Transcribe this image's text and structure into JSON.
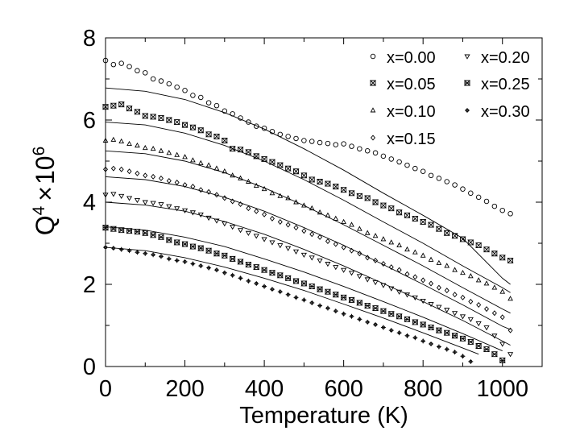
{
  "chart_data": {
    "type": "scatter",
    "title": "",
    "xlabel": "Temperature (K)",
    "ylabel": {
      "base": "Q",
      "sup1": "4",
      "times": "×",
      "mult": "10",
      "sup2": "6"
    },
    "xlim": [
      0,
      1100
    ],
    "ylim": [
      0,
      8
    ],
    "xticks": [
      0,
      200,
      400,
      600,
      800,
      1000
    ],
    "yticks": [
      0,
      2,
      4,
      6,
      8
    ],
    "grid": false,
    "legend_position": "top-right",
    "series": [
      {
        "name": "x=0.00",
        "marker": "circle",
        "x": [
          0,
          20,
          40,
          60,
          80,
          100,
          120,
          140,
          160,
          180,
          200,
          220,
          240,
          260,
          280,
          300,
          320,
          340,
          360,
          380,
          400,
          420,
          440,
          460,
          480,
          500,
          520,
          540,
          560,
          580,
          600,
          620,
          640,
          660,
          680,
          700,
          720,
          740,
          760,
          780,
          800,
          820,
          840,
          860,
          880,
          900,
          920,
          940,
          960,
          980,
          1000,
          1020
        ],
        "y": [
          7.45,
          7.35,
          7.38,
          7.3,
          7.2,
          7.15,
          7.0,
          6.95,
          6.88,
          6.8,
          6.72,
          6.6,
          6.55,
          6.42,
          6.35,
          6.22,
          6.15,
          6.05,
          5.95,
          5.85,
          5.8,
          5.72,
          5.65,
          5.6,
          5.55,
          5.5,
          5.48,
          5.45,
          5.43,
          5.4,
          5.42,
          5.36,
          5.3,
          5.25,
          5.2,
          5.12,
          5.05,
          4.98,
          4.9,
          4.82,
          4.75,
          4.65,
          4.58,
          4.5,
          4.42,
          4.32,
          4.22,
          4.12,
          4.02,
          3.9,
          3.8,
          3.72
        ]
      },
      {
        "name": "x=0.05",
        "marker": "bowtie",
        "x": [
          0,
          20,
          40,
          60,
          80,
          100,
          120,
          140,
          160,
          180,
          200,
          220,
          240,
          260,
          280,
          300,
          320,
          340,
          360,
          380,
          400,
          420,
          440,
          460,
          480,
          500,
          520,
          540,
          560,
          580,
          600,
          620,
          640,
          660,
          680,
          700,
          720,
          740,
          760,
          780,
          800,
          820,
          840,
          860,
          880,
          900,
          920,
          940,
          960,
          980,
          1000,
          1020
        ],
        "y": [
          6.32,
          6.35,
          6.38,
          6.28,
          6.2,
          6.1,
          6.08,
          6.05,
          6.0,
          5.95,
          5.88,
          5.82,
          5.75,
          5.65,
          5.6,
          5.5,
          5.3,
          5.28,
          5.22,
          5.12,
          5.05,
          4.98,
          4.9,
          4.82,
          4.75,
          4.65,
          4.55,
          4.5,
          4.45,
          4.38,
          4.3,
          4.22,
          4.15,
          4.1,
          4.0,
          3.92,
          3.85,
          3.75,
          3.68,
          3.6,
          3.52,
          3.45,
          3.35,
          3.25,
          3.18,
          3.1,
          3.02,
          2.95,
          2.85,
          2.75,
          2.65,
          2.58
        ]
      },
      {
        "name": "x=0.10",
        "marker": "triangle-up",
        "x": [
          0,
          20,
          40,
          60,
          80,
          100,
          120,
          140,
          160,
          180,
          200,
          220,
          240,
          260,
          280,
          300,
          320,
          340,
          360,
          380,
          400,
          420,
          440,
          460,
          480,
          500,
          520,
          540,
          560,
          580,
          600,
          620,
          640,
          660,
          680,
          700,
          720,
          740,
          760,
          780,
          800,
          820,
          840,
          860,
          880,
          900,
          920,
          940,
          960,
          980,
          1000,
          1020
        ],
        "y": [
          5.5,
          5.52,
          5.48,
          5.42,
          5.38,
          5.32,
          5.3,
          5.25,
          5.2,
          5.15,
          5.1,
          5.02,
          4.95,
          4.9,
          4.82,
          4.75,
          4.65,
          4.58,
          4.5,
          4.4,
          4.32,
          4.22,
          4.15,
          4.1,
          4.0,
          3.92,
          3.85,
          3.75,
          3.68,
          3.6,
          3.52,
          3.45,
          3.35,
          3.25,
          3.18,
          3.1,
          3.02,
          2.95,
          2.85,
          2.78,
          2.7,
          2.6,
          2.52,
          2.45,
          2.35,
          2.28,
          2.2,
          2.1,
          2.02,
          1.92,
          1.82,
          1.65
        ]
      },
      {
        "name": "x=0.15",
        "marker": "diamond",
        "x": [
          0,
          20,
          40,
          60,
          80,
          100,
          120,
          140,
          160,
          180,
          200,
          220,
          240,
          260,
          280,
          300,
          320,
          340,
          360,
          380,
          400,
          420,
          440,
          460,
          480,
          500,
          520,
          540,
          560,
          580,
          600,
          620,
          640,
          660,
          680,
          700,
          720,
          740,
          760,
          780,
          800,
          820,
          840,
          860,
          880,
          900,
          920,
          940,
          960,
          980,
          1000,
          1020
        ],
        "y": [
          4.8,
          4.82,
          4.8,
          4.75,
          4.7,
          4.65,
          4.62,
          4.58,
          4.52,
          4.48,
          4.42,
          4.38,
          4.3,
          4.25,
          4.18,
          4.1,
          4.02,
          3.95,
          3.85,
          3.78,
          3.7,
          3.6,
          3.52,
          3.45,
          3.38,
          3.3,
          3.22,
          3.15,
          3.05,
          2.98,
          2.9,
          2.82,
          2.75,
          2.65,
          2.58,
          2.5,
          2.42,
          2.35,
          2.25,
          2.18,
          2.1,
          2.02,
          1.92,
          1.85,
          1.75,
          1.68,
          1.58,
          1.5,
          1.4,
          1.3,
          1.2,
          0.88
        ]
      },
      {
        "name": "x=0.20",
        "marker": "triangle-down",
        "x": [
          0,
          20,
          40,
          60,
          80,
          100,
          120,
          140,
          160,
          180,
          200,
          220,
          240,
          260,
          280,
          300,
          320,
          340,
          360,
          380,
          400,
          420,
          440,
          460,
          480,
          500,
          520,
          540,
          560,
          580,
          600,
          620,
          640,
          660,
          680,
          700,
          720,
          740,
          760,
          780,
          800,
          820,
          840,
          860,
          880,
          900,
          920,
          940,
          960,
          980,
          1000,
          1020
        ],
        "y": [
          4.18,
          4.2,
          4.15,
          4.1,
          4.05,
          4.0,
          3.98,
          3.95,
          3.9,
          3.85,
          3.8,
          3.75,
          3.7,
          3.62,
          3.55,
          3.48,
          3.4,
          3.32,
          3.25,
          3.18,
          3.1,
          3.02,
          2.95,
          2.88,
          2.8,
          2.72,
          2.65,
          2.58,
          2.5,
          2.42,
          2.35,
          2.28,
          2.2,
          2.12,
          2.05,
          1.98,
          1.9,
          1.82,
          1.75,
          1.68,
          1.6,
          1.52,
          1.45,
          1.38,
          1.3,
          1.22,
          1.15,
          1.05,
          0.95,
          0.75,
          0.55,
          0.3
        ]
      },
      {
        "name": "x=0.25",
        "marker": "bowtie-filled",
        "x": [
          0,
          20,
          40,
          60,
          80,
          100,
          120,
          140,
          160,
          180,
          200,
          220,
          240,
          260,
          280,
          300,
          320,
          340,
          360,
          380,
          400,
          420,
          440,
          460,
          480,
          500,
          520,
          540,
          560,
          580,
          600,
          620,
          640,
          660,
          680,
          700,
          720,
          740,
          760,
          780,
          800,
          820,
          840,
          860,
          880,
          900,
          920,
          940,
          960,
          980,
          1000
        ],
        "y": [
          3.38,
          3.35,
          3.32,
          3.3,
          3.28,
          3.25,
          3.2,
          3.15,
          3.08,
          3.02,
          2.98,
          2.92,
          2.88,
          2.82,
          2.75,
          2.7,
          2.62,
          2.55,
          2.48,
          2.42,
          2.35,
          2.28,
          2.22,
          2.15,
          2.08,
          2.02,
          1.95,
          1.88,
          1.82,
          1.75,
          1.68,
          1.62,
          1.55,
          1.48,
          1.42,
          1.35,
          1.28,
          1.22,
          1.15,
          1.08,
          1.02,
          0.95,
          0.88,
          0.82,
          0.75,
          0.68,
          0.6,
          0.5,
          0.42,
          0.3,
          0.15
        ]
      },
      {
        "name": "x=0.30",
        "marker": "plus-circle",
        "x": [
          0,
          20,
          40,
          60,
          80,
          100,
          120,
          140,
          160,
          180,
          200,
          220,
          240,
          260,
          280,
          300,
          320,
          340,
          360,
          380,
          400,
          420,
          440,
          460,
          480,
          500,
          520,
          540,
          560,
          580,
          600,
          620,
          640,
          660,
          680,
          700,
          720,
          740,
          760,
          780,
          800,
          820,
          840,
          860,
          880,
          900,
          920
        ],
        "y": [
          2.9,
          2.88,
          2.85,
          2.82,
          2.78,
          2.75,
          2.72,
          2.68,
          2.62,
          2.58,
          2.55,
          2.5,
          2.45,
          2.4,
          2.35,
          2.28,
          2.22,
          2.15,
          2.08,
          2.02,
          1.95,
          1.88,
          1.82,
          1.75,
          1.68,
          1.62,
          1.55,
          1.48,
          1.42,
          1.35,
          1.28,
          1.22,
          1.15,
          1.08,
          1.02,
          0.95,
          0.88,
          0.82,
          0.75,
          0.7,
          0.62,
          0.55,
          0.48,
          0.42,
          0.35,
          0.25,
          0.12
        ]
      }
    ],
    "fit_lines": [
      {
        "x": [
          0,
          100,
          200,
          300,
          400,
          500,
          600,
          700,
          800,
          900,
          1000,
          1020
        ],
        "y": [
          6.78,
          6.7,
          6.5,
          6.18,
          5.78,
          5.3,
          4.78,
          4.22,
          3.68,
          3.12,
          2.15,
          2.0
        ]
      },
      {
        "x": [
          0,
          100,
          200,
          300,
          400,
          500,
          600,
          700,
          800,
          900,
          1000,
          1020
        ],
        "y": [
          5.95,
          5.88,
          5.68,
          5.38,
          5.0,
          4.55,
          4.05,
          3.52,
          3.0,
          2.45,
          1.92,
          1.8
        ]
      },
      {
        "x": [
          0,
          100,
          200,
          300,
          400,
          500,
          600,
          700,
          800,
          900,
          1000,
          1020
        ],
        "y": [
          5.25,
          5.18,
          5.0,
          4.72,
          4.35,
          3.92,
          3.45,
          2.95,
          2.45,
          1.92,
          1.4,
          1.3
        ]
      },
      {
        "x": [
          0,
          100,
          200,
          300,
          400,
          500,
          600,
          700,
          800,
          900,
          1000,
          1020
        ],
        "y": [
          4.62,
          4.55,
          4.38,
          4.12,
          3.78,
          3.38,
          2.95,
          2.48,
          2.0,
          1.5,
          0.98,
          0.9
        ]
      },
      {
        "x": [
          0,
          100,
          200,
          300,
          400,
          500,
          600,
          700,
          800,
          900,
          1000,
          1020
        ],
        "y": [
          4.0,
          3.93,
          3.78,
          3.53,
          3.22,
          2.85,
          2.45,
          2.02,
          1.58,
          1.12,
          0.62,
          0.52
        ]
      },
      {
        "x": [
          0,
          100,
          200,
          300,
          400,
          500,
          600,
          700,
          800,
          900,
          1000
        ],
        "y": [
          3.4,
          3.32,
          3.15,
          2.92,
          2.62,
          2.3,
          1.95,
          1.58,
          1.2,
          0.8,
          0.38
        ]
      },
      {
        "x": [
          0,
          100,
          200,
          300,
          400,
          500,
          600,
          700,
          800,
          900,
          940
        ],
        "y": [
          2.9,
          2.82,
          2.65,
          2.42,
          2.15,
          1.85,
          1.52,
          1.18,
          0.82,
          0.45,
          0.3
        ]
      }
    ]
  }
}
